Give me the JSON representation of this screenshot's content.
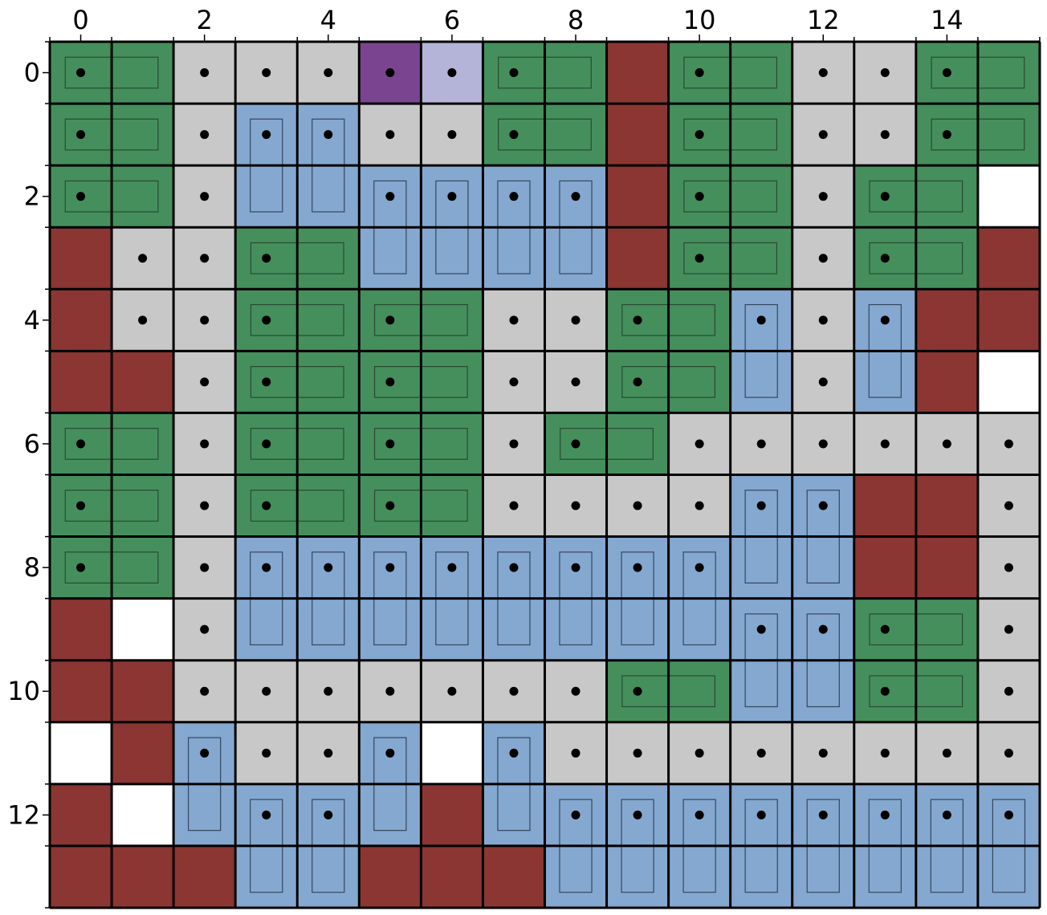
{
  "colors": {
    "wall": "#8b3632",
    "empty": "#c8c8c8",
    "horizontal_car": "#458f5c",
    "vertical_car": "#85a8d0",
    "void": "#ffffff",
    "agent": "#7b4491",
    "target": "#b4b3d8",
    "grid_line": "#000000",
    "dot": "#000000"
  },
  "axes": {
    "x_ticks": [
      "0",
      "2",
      "4",
      "6",
      "8",
      "10",
      "12",
      "14"
    ],
    "y_ticks": [
      "0",
      "2",
      "4",
      "6",
      "8",
      "10",
      "12"
    ]
  },
  "board": {
    "legend": "W=wall, E=empty, H=horizontal vehicle, V=vertical vehicle, X=void, A=agent, T=target",
    "rows": [
      "HHEEEATHHWHHEEHH",
      "HHEVVEEHHWHHEEHH",
      "HHEVVVVVVWHHEHHX",
      "WEEHHVVVVWHHEHHW",
      "WEEHHHHEEHHVEVWW",
      "WWEHHHHEEHHVEVWX",
      "HHEHHHHEHHEEEEEE",
      "HHEHHHHEEEEVVWWE",
      "HHEVVVVVVVVVVWWE",
      "WXEVVVVVVVVVVHHE",
      "WWEEEEEEEHHVVHHE",
      "XWVEEVXVEEEEEEEE",
      "WXVVVVWVVVVVVVVV",
      "WWWVVWWWVVVVVVVV"
    ],
    "horizontal_vehicles": [
      {
        "row": 0,
        "col": 0,
        "len": 2
      },
      {
        "row": 0,
        "col": 7,
        "len": 2
      },
      {
        "row": 0,
        "col": 10,
        "len": 2
      },
      {
        "row": 0,
        "col": 14,
        "len": 2
      },
      {
        "row": 1,
        "col": 0,
        "len": 2
      },
      {
        "row": 1,
        "col": 7,
        "len": 2
      },
      {
        "row": 1,
        "col": 10,
        "len": 2
      },
      {
        "row": 1,
        "col": 14,
        "len": 2
      },
      {
        "row": 2,
        "col": 0,
        "len": 2
      },
      {
        "row": 2,
        "col": 10,
        "len": 2
      },
      {
        "row": 2,
        "col": 13,
        "len": 2
      },
      {
        "row": 3,
        "col": 3,
        "len": 2
      },
      {
        "row": 3,
        "col": 10,
        "len": 2
      },
      {
        "row": 3,
        "col": 13,
        "len": 2
      },
      {
        "row": 4,
        "col": 3,
        "len": 2
      },
      {
        "row": 4,
        "col": 5,
        "len": 2
      },
      {
        "row": 4,
        "col": 9,
        "len": 2
      },
      {
        "row": 5,
        "col": 3,
        "len": 2
      },
      {
        "row": 5,
        "col": 5,
        "len": 2
      },
      {
        "row": 5,
        "col": 9,
        "len": 2
      },
      {
        "row": 6,
        "col": 0,
        "len": 2
      },
      {
        "row": 6,
        "col": 3,
        "len": 2
      },
      {
        "row": 6,
        "col": 5,
        "len": 2
      },
      {
        "row": 6,
        "col": 8,
        "len": 2
      },
      {
        "row": 7,
        "col": 0,
        "len": 2
      },
      {
        "row": 7,
        "col": 3,
        "len": 2
      },
      {
        "row": 7,
        "col": 5,
        "len": 2
      },
      {
        "row": 8,
        "col": 0,
        "len": 2
      },
      {
        "row": 9,
        "col": 13,
        "len": 2
      },
      {
        "row": 10,
        "col": 9,
        "len": 2
      },
      {
        "row": 10,
        "col": 13,
        "len": 2
      }
    ],
    "vertical_vehicles": [
      {
        "row": 1,
        "col": 3,
        "len": 2
      },
      {
        "row": 1,
        "col": 4,
        "len": 2
      },
      {
        "row": 2,
        "col": 5,
        "len": 2
      },
      {
        "row": 2,
        "col": 6,
        "len": 2
      },
      {
        "row": 2,
        "col": 7,
        "len": 2
      },
      {
        "row": 2,
        "col": 8,
        "len": 2
      },
      {
        "row": 4,
        "col": 11,
        "len": 2
      },
      {
        "row": 4,
        "col": 13,
        "len": 2
      },
      {
        "row": 7,
        "col": 11,
        "len": 2
      },
      {
        "row": 7,
        "col": 12,
        "len": 2
      },
      {
        "row": 8,
        "col": 3,
        "len": 2
      },
      {
        "row": 8,
        "col": 4,
        "len": 2
      },
      {
        "row": 8,
        "col": 5,
        "len": 2
      },
      {
        "row": 8,
        "col": 6,
        "len": 2
      },
      {
        "row": 8,
        "col": 7,
        "len": 2
      },
      {
        "row": 8,
        "col": 8,
        "len": 2
      },
      {
        "row": 8,
        "col": 9,
        "len": 2
      },
      {
        "row": 8,
        "col": 10,
        "len": 2
      },
      {
        "row": 9,
        "col": 11,
        "len": 2
      },
      {
        "row": 9,
        "col": 12,
        "len": 2
      },
      {
        "row": 11,
        "col": 2,
        "len": 2
      },
      {
        "row": 11,
        "col": 5,
        "len": 2
      },
      {
        "row": 11,
        "col": 7,
        "len": 2
      },
      {
        "row": 12,
        "col": 3,
        "len": 2
      },
      {
        "row": 12,
        "col": 4,
        "len": 2
      },
      {
        "row": 12,
        "col": 8,
        "len": 2
      },
      {
        "row": 12,
        "col": 9,
        "len": 2
      },
      {
        "row": 12,
        "col": 10,
        "len": 2
      },
      {
        "row": 12,
        "col": 11,
        "len": 2
      },
      {
        "row": 12,
        "col": 12,
        "len": 2
      },
      {
        "row": 12,
        "col": 13,
        "len": 2
      },
      {
        "row": 12,
        "col": 14,
        "len": 2
      },
      {
        "row": 12,
        "col": 15,
        "len": 2
      }
    ]
  }
}
